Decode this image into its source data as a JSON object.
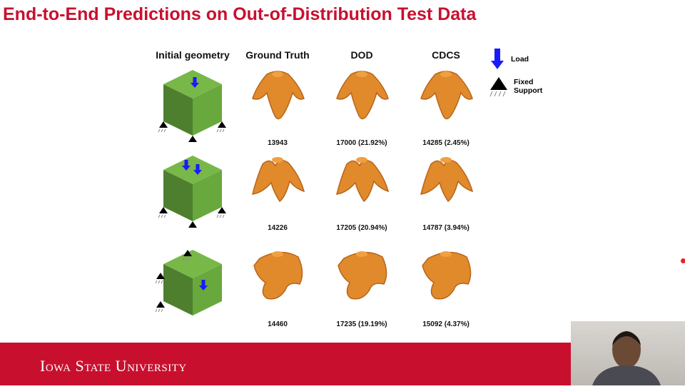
{
  "title": "End-to-End Predictions on Out-of-Distribution Test Data",
  "columns": [
    "Initial geometry",
    "Ground Truth",
    "DOD",
    "CDCS"
  ],
  "legend": {
    "load": "Load",
    "fixed_support": "Fixed Support"
  },
  "rows": [
    {
      "ground_truth": "13943",
      "dod": "17000 (21.92%)",
      "cdcs": "14285 (2.45%)"
    },
    {
      "ground_truth": "14226",
      "dod": "17205 (20.94%)",
      "cdcs": "14787 (3.94%)"
    },
    {
      "ground_truth": "14460",
      "dod": "17235 (19.19%)",
      "cdcs": "15092 (4.37%)"
    }
  ],
  "footer": "Iowa State University",
  "colors": {
    "brand": "#c8102e",
    "cube": "#6aaa3a",
    "shape": "#e08a2c",
    "load": "#1a1aff"
  }
}
